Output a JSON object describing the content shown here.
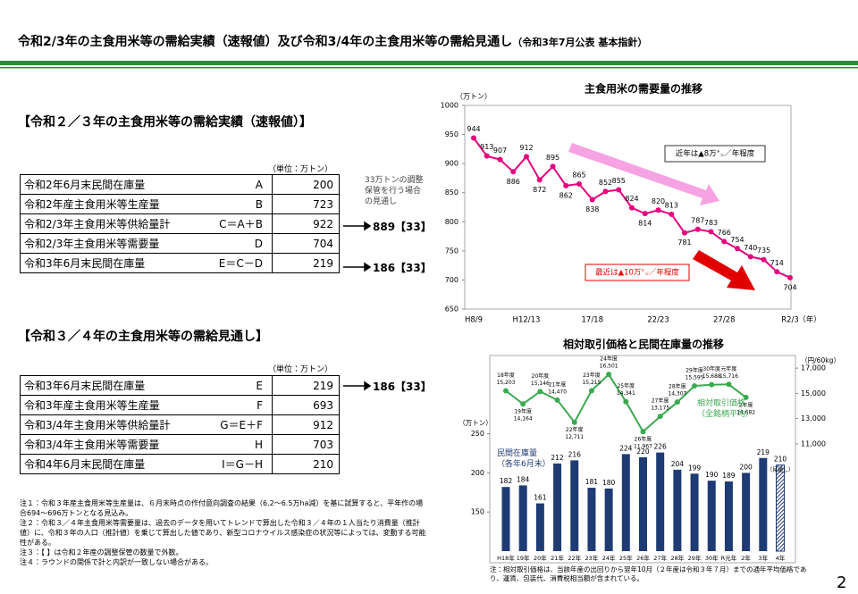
{
  "header": {
    "title": "令和2/3年の主食用米等の需給実績（速報値）及び令和3/4年の主食用米等の需給見通し",
    "subtitle": "（令和3年7月公表 基本指針）"
  },
  "section1": {
    "title": "【令和２／３年の主食用米等の需給実績（速報値）】",
    "unit": "（単位：万トン）",
    "rows": [
      [
        "令和2年6月末民間在庫量",
        "A",
        200
      ],
      [
        "令和2年産主食用米等生産量",
        "B",
        723
      ],
      [
        "令和2/3年主食用米等供給量計",
        "C＝A＋B",
        922
      ],
      [
        "令和2/3年主食用米等需要量",
        "D",
        704
      ],
      [
        "令和3年6月末民間在庫量",
        "E＝C－D",
        219
      ]
    ],
    "side_note": "33万トンの調整保管を行う場合の見通し",
    "side_values": [
      "889【33】",
      "186【33】"
    ]
  },
  "section2": {
    "title": "【令和３／４年の主食用米等の需給見通し】",
    "unit": "（単位：万トン）",
    "rows": [
      [
        "令和3年6月末民間在庫量",
        "E",
        219
      ],
      [
        "令和3年産主食用米等生産量",
        "F",
        693
      ],
      [
        "令和3/4年主食用米等供給量計",
        "G＝E＋F",
        912
      ],
      [
        "令和3/4年主食用米等需要量",
        "H",
        703
      ],
      [
        "令和4年6月末民間在庫量",
        "I＝G－H",
        210
      ]
    ],
    "side_values": [
      "186【33】"
    ]
  },
  "notes": [
    "注１：令和３年産主食用米等生産量は、６月末時点の作付意向調査の結果（6.2～6.5万ha減）を基に試算すると、平年作の場合694～696万トンとなる見込み。",
    "注２：令和３／４年主食用米等需要量は、過去のデータを用いてトレンドで算出した令和３／４年の１人当たり消費量（推計値）に、令和３年の人口（推計値）を乗じて算出した値であり、新型コロナウイルス感染症の状況等によっては、変動する可能性がある。",
    "注３：【 】は令和２年産の調整保管の数量で外数。",
    "注４：ラウンドの関係で計と内訳が一致しない場合がある。"
  ],
  "page_number": "2",
  "chart_data": [
    {
      "type": "line",
      "title": "主食用米の需要量の推移",
      "y_label": "（万トン）",
      "x_label": "（年）",
      "color": "#e6007e",
      "categories": [
        "H8/9",
        null,
        null,
        null,
        "H12/13",
        null,
        null,
        null,
        null,
        "17/18",
        null,
        null,
        null,
        null,
        "22/23",
        null,
        null,
        null,
        null,
        "27/28",
        null,
        null,
        null,
        null,
        "R2/3"
      ],
      "values": [
        944,
        913,
        907,
        886,
        912,
        872,
        895,
        862,
        865,
        838,
        852,
        855,
        824,
        814,
        820,
        813,
        781,
        787,
        783,
        766,
        754,
        740,
        735,
        714,
        704
      ],
      "ylim": [
        650,
        1000
      ],
      "yticks": [
        650,
        700,
        750,
        800,
        850,
        900,
        950,
        1000
      ],
      "annotations": [
        "近年は▲8万㌧／年程度",
        "最近は▲10万㌧／年程度"
      ]
    },
    {
      "type": "bar-line",
      "title": "相対取引価格と民間在庫量の推移",
      "y_label": "（万トン）",
      "y2_label": "（円/60kg）",
      "categories": [
        "H18年",
        "19年",
        "20年",
        "21年",
        "22年",
        "23年",
        "24年",
        "25年",
        "26年",
        "27年",
        "28年",
        "29年",
        "30年",
        "R元年",
        "2年",
        "3年",
        "4年"
      ],
      "ylim": [
        100,
        350
      ],
      "yticks": [
        150,
        200,
        250
      ],
      "y2lim": [
        2500,
        18000
      ],
      "y2ticks": [
        {
          "value": 11000,
          "label": "11,000"
        },
        {
          "value": 13000,
          "label": "13,000"
        },
        {
          "value": 15000,
          "label": "15,000"
        },
        {
          "value": 17000,
          "label": "17,000"
        }
      ],
      "series": [
        {
          "name": "民間在庫量\n（各年6月末）",
          "type": "bar",
          "color": "#1f3b73",
          "values": [
            182,
            184,
            161,
            212,
            216,
            181,
            180,
            224,
            220,
            226,
            204,
            199,
            190,
            189,
            200,
            219,
            210
          ]
        },
        {
          "name": "相対取引価格\n（全銘柄平均）",
          "type": "line",
          "axis": "y2",
          "color": "#3aaa50",
          "values": [
            15203,
            14164,
            15146,
            14470,
            12711,
            15215,
            16501,
            14341,
            11967,
            13175,
            14307,
            15595,
            15688,
            15716,
            14682,
            null,
            null
          ],
          "value_labels": [
            "15,203",
            "14,164",
            "15,146",
            "14,470",
            "12,711",
            "15,215",
            "16,501",
            "14,341",
            "11,967",
            "13,175",
            "14,307",
            "15,595",
            "15,688",
            "15,716",
            "14,682",
            null,
            null
          ],
          "point_labels": [
            "18年度",
            "19年度",
            "20年度",
            "21年度",
            "22年度",
            "23年度",
            "24年度",
            "25年度",
            "26年度",
            "27年度",
            "28年度",
            "29年度",
            "30年度",
            "元年度",
            "2年度",
            null,
            null
          ]
        }
      ],
      "annotations": [
        "（見通し）"
      ],
      "note": "注：相対取引価格は、当該年産の出回りから翌年10月（２年産は令和３年７月）までの通年平均価格であり、運賃、包装代、消費税相当額が含まれている。"
    }
  ]
}
